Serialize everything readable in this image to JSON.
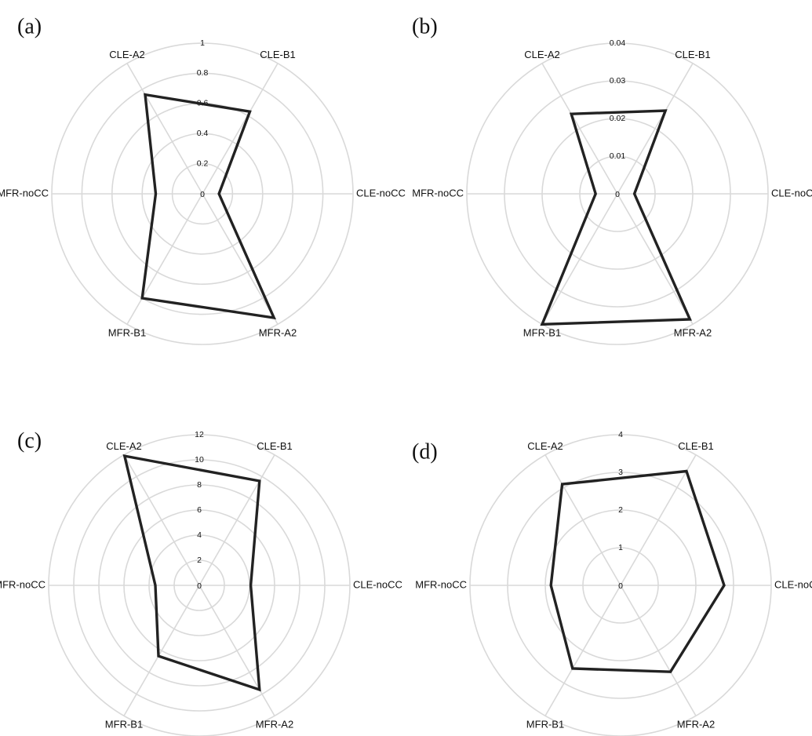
{
  "figure": {
    "background": "#ffffff",
    "grid_color": "#d9d9d9",
    "series_color": "#222222"
  },
  "chart_data": [
    {
      "type": "radar",
      "panel_label": "(a)",
      "axes": [
        "CLE-noCC",
        "CLE-B1",
        "CLE-A2",
        "MFR-noCC",
        "MFR-B1",
        "MFR-A2"
      ],
      "ticks": [
        0,
        0.2,
        0.4,
        0.6,
        0.8,
        1
      ],
      "tick_labels": [
        "0",
        "0.2",
        "0.4",
        "0.6",
        "0.8",
        "1"
      ],
      "rlim": [
        0,
        1
      ],
      "grid": true,
      "values": [
        0.11,
        0.63,
        0.76,
        0.31,
        0.8,
        0.95
      ]
    },
    {
      "type": "radar",
      "panel_label": "(b)",
      "axes": [
        "CLE-noCC",
        "CLE-B1",
        "CLE-A2",
        "MFR-noCC",
        "MFR-B1",
        "MFR-A2"
      ],
      "ticks": [
        0,
        0.01,
        0.02,
        0.03,
        0.04
      ],
      "tick_labels": [
        "0",
        "0.01",
        "0.02",
        "0.03",
        "0.04"
      ],
      "rlim": [
        0,
        0.04
      ],
      "grid": true,
      "values": [
        0.0045,
        0.0255,
        0.0245,
        0.0058,
        0.04,
        0.0385
      ]
    },
    {
      "type": "radar",
      "panel_label": "(c)",
      "axes": [
        "CLE-noCC",
        "CLE-B1",
        "CLE-A2",
        "MFR-noCC",
        "MFR-B1",
        "MFR-A2"
      ],
      "ticks": [
        0,
        2,
        4,
        6,
        8,
        10,
        12
      ],
      "tick_labels": [
        "0",
        "2",
        "4",
        "6",
        "8",
        "10",
        "12"
      ],
      "rlim": [
        0,
        12
      ],
      "grid": true,
      "values": [
        4.1,
        9.6,
        11.9,
        3.5,
        6.5,
        9.6
      ]
    },
    {
      "type": "radar",
      "panel_label": "(d)",
      "axes": [
        "CLE-noCC",
        "CLE-B1",
        "CLE-A2",
        "MFR-noCC",
        "MFR-B1",
        "MFR-A2"
      ],
      "ticks": [
        0,
        1,
        2,
        3,
        4
      ],
      "tick_labels": [
        "0",
        "1",
        "2",
        "3",
        "4"
      ],
      "rlim": [
        0,
        4
      ],
      "grid": true,
      "values": [
        2.75,
        3.5,
        3.1,
        1.85,
        2.55,
        2.65
      ]
    }
  ]
}
